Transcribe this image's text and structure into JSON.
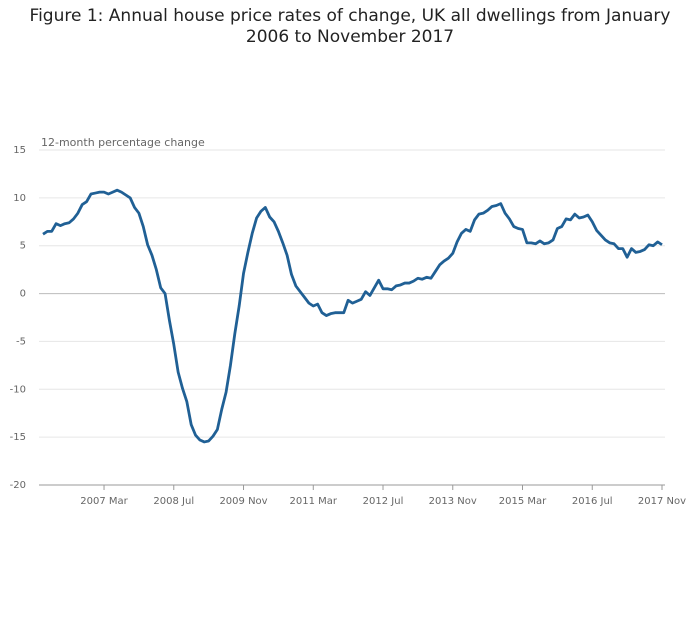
{
  "chart_data": {
    "type": "line",
    "title": "Figure 1: Annual house price rates of change, UK all dwellings from January 2006 to November 2017",
    "y_axis_label": "12-month percentage change",
    "categories": [
      null,
      null,
      null,
      null,
      null,
      null,
      null,
      null,
      null,
      null,
      null,
      null,
      null,
      null,
      "2007 Mar",
      null,
      null,
      null,
      null,
      null,
      null,
      null,
      null,
      null,
      null,
      null,
      null,
      null,
      null,
      null,
      "2008 Jul",
      null,
      null,
      null,
      null,
      null,
      null,
      null,
      null,
      null,
      null,
      null,
      null,
      null,
      null,
      null,
      "2009 Nov",
      null,
      null,
      null,
      null,
      null,
      null,
      null,
      null,
      null,
      null,
      null,
      null,
      null,
      null,
      null,
      "2011 Mar",
      null,
      null,
      null,
      null,
      null,
      null,
      null,
      null,
      null,
      null,
      null,
      null,
      null,
      null,
      null,
      "2012 Jul",
      null,
      null,
      null,
      null,
      null,
      null,
      null,
      null,
      null,
      null,
      null,
      null,
      null,
      null,
      null,
      "2013 Nov",
      null,
      null,
      null,
      null,
      null,
      null,
      null,
      null,
      null,
      null,
      null,
      null,
      null,
      null,
      null,
      "2015 Mar",
      null,
      null,
      null,
      null,
      null,
      null,
      null,
      null,
      null,
      null,
      null,
      null,
      null,
      null,
      null,
      "2016 Jul",
      null,
      null,
      null,
      null,
      null,
      null,
      null,
      null,
      null,
      null,
      null,
      null,
      null,
      null,
      null,
      "2017 Nov"
    ],
    "values": [
      6.2,
      6.5,
      6.5,
      7.3,
      7.1,
      7.3,
      7.4,
      7.8,
      8.4,
      9.3,
      9.6,
      10.4,
      10.5,
      10.6,
      10.6,
      10.4,
      10.6,
      10.8,
      10.6,
      10.3,
      10.0,
      9.0,
      8.4,
      7.0,
      5.1,
      4.0,
      2.5,
      0.6,
      0.0,
      -2.8,
      -5.3,
      -8.2,
      -9.9,
      -11.3,
      -13.7,
      -14.8,
      -15.3,
      -15.5,
      -15.4,
      -14.9,
      -14.2,
      -12.1,
      -10.3,
      -7.5,
      -4.2,
      -1.3,
      2.1,
      4.3,
      6.3,
      7.9,
      8.6,
      9.0,
      8.0,
      7.5,
      6.5,
      5.3,
      4.0,
      2.0,
      0.8,
      0.2,
      -0.4,
      -1.0,
      -1.3,
      -1.1,
      -2.0,
      -2.3,
      -2.1,
      -2.0,
      -2.0,
      -2.0,
      -0.7,
      -1.0,
      -0.8,
      -0.6,
      0.2,
      -0.2,
      0.6,
      1.4,
      0.5,
      0.5,
      0.4,
      0.8,
      0.9,
      1.1,
      1.1,
      1.3,
      1.6,
      1.5,
      1.7,
      1.6,
      2.3,
      3.0,
      3.4,
      3.7,
      4.2,
      5.4,
      6.3,
      6.7,
      6.5,
      7.7,
      8.3,
      8.4,
      8.7,
      9.1,
      9.2,
      9.4,
      8.4,
      7.8,
      7.0,
      6.8,
      6.7,
      5.3,
      5.3,
      5.2,
      5.5,
      5.2,
      5.3,
      5.6,
      6.8,
      7.0,
      7.8,
      7.7,
      8.3,
      7.9,
      8.0,
      8.2,
      7.5,
      6.6,
      6.1,
      5.6,
      5.3,
      5.2,
      4.7,
      4.7,
      3.8,
      4.7,
      4.3,
      4.4,
      4.6,
      5.1,
      5.0,
      5.4,
      5.1
    ],
    "color": "#206095",
    "ylim": [
      -20,
      15
    ],
    "yticks": [
      -20,
      -15,
      -10,
      -5,
      0,
      5,
      10,
      15
    ],
    "grid": true
  }
}
